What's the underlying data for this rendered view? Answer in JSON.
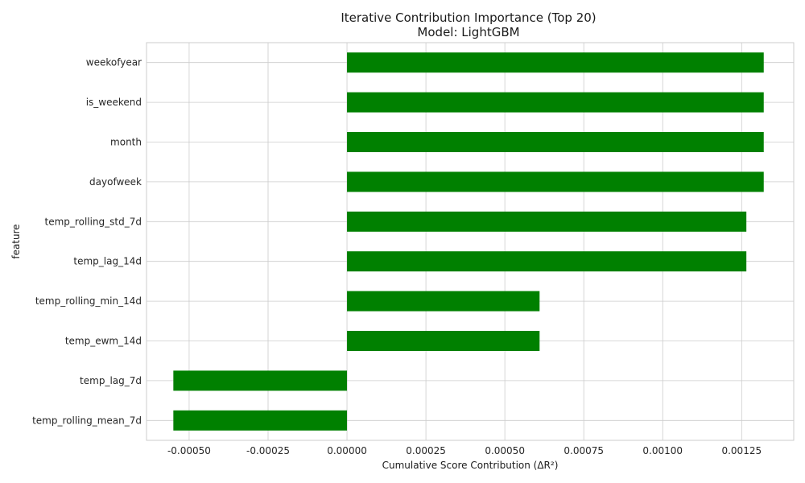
{
  "chart_data": {
    "type": "bar",
    "orientation": "horizontal",
    "title": "Iterative Contribution Importance (Top 20)",
    "subtitle": "Model: LightGBM",
    "xlabel": "Cumulative Score Contribution (ΔR²)",
    "ylabel": "feature",
    "categories": [
      "weekofyear",
      "is_weekend",
      "month",
      "dayofweek",
      "temp_rolling_std_7d",
      "temp_lag_14d",
      "temp_rolling_min_14d",
      "temp_ewm_14d",
      "temp_lag_7d",
      "temp_rolling_mean_7d"
    ],
    "values": [
      0.00132,
      0.00132,
      0.00132,
      0.00132,
      0.001265,
      0.001265,
      0.00061,
      0.00061,
      -0.00055,
      -0.00055
    ],
    "xlim": [
      -0.000635,
      0.001415
    ],
    "xticks": [
      -0.0005,
      -0.00025,
      0.0,
      0.00025,
      0.0005,
      0.00075,
      0.001,
      0.00125
    ],
    "xtick_labels": [
      "-0.00050",
      "-0.00025",
      "0.00000",
      "0.00025",
      "0.00050",
      "0.00075",
      "0.00100",
      "0.00125"
    ],
    "bar_color": "#008000",
    "grid": true,
    "legend": "none"
  }
}
